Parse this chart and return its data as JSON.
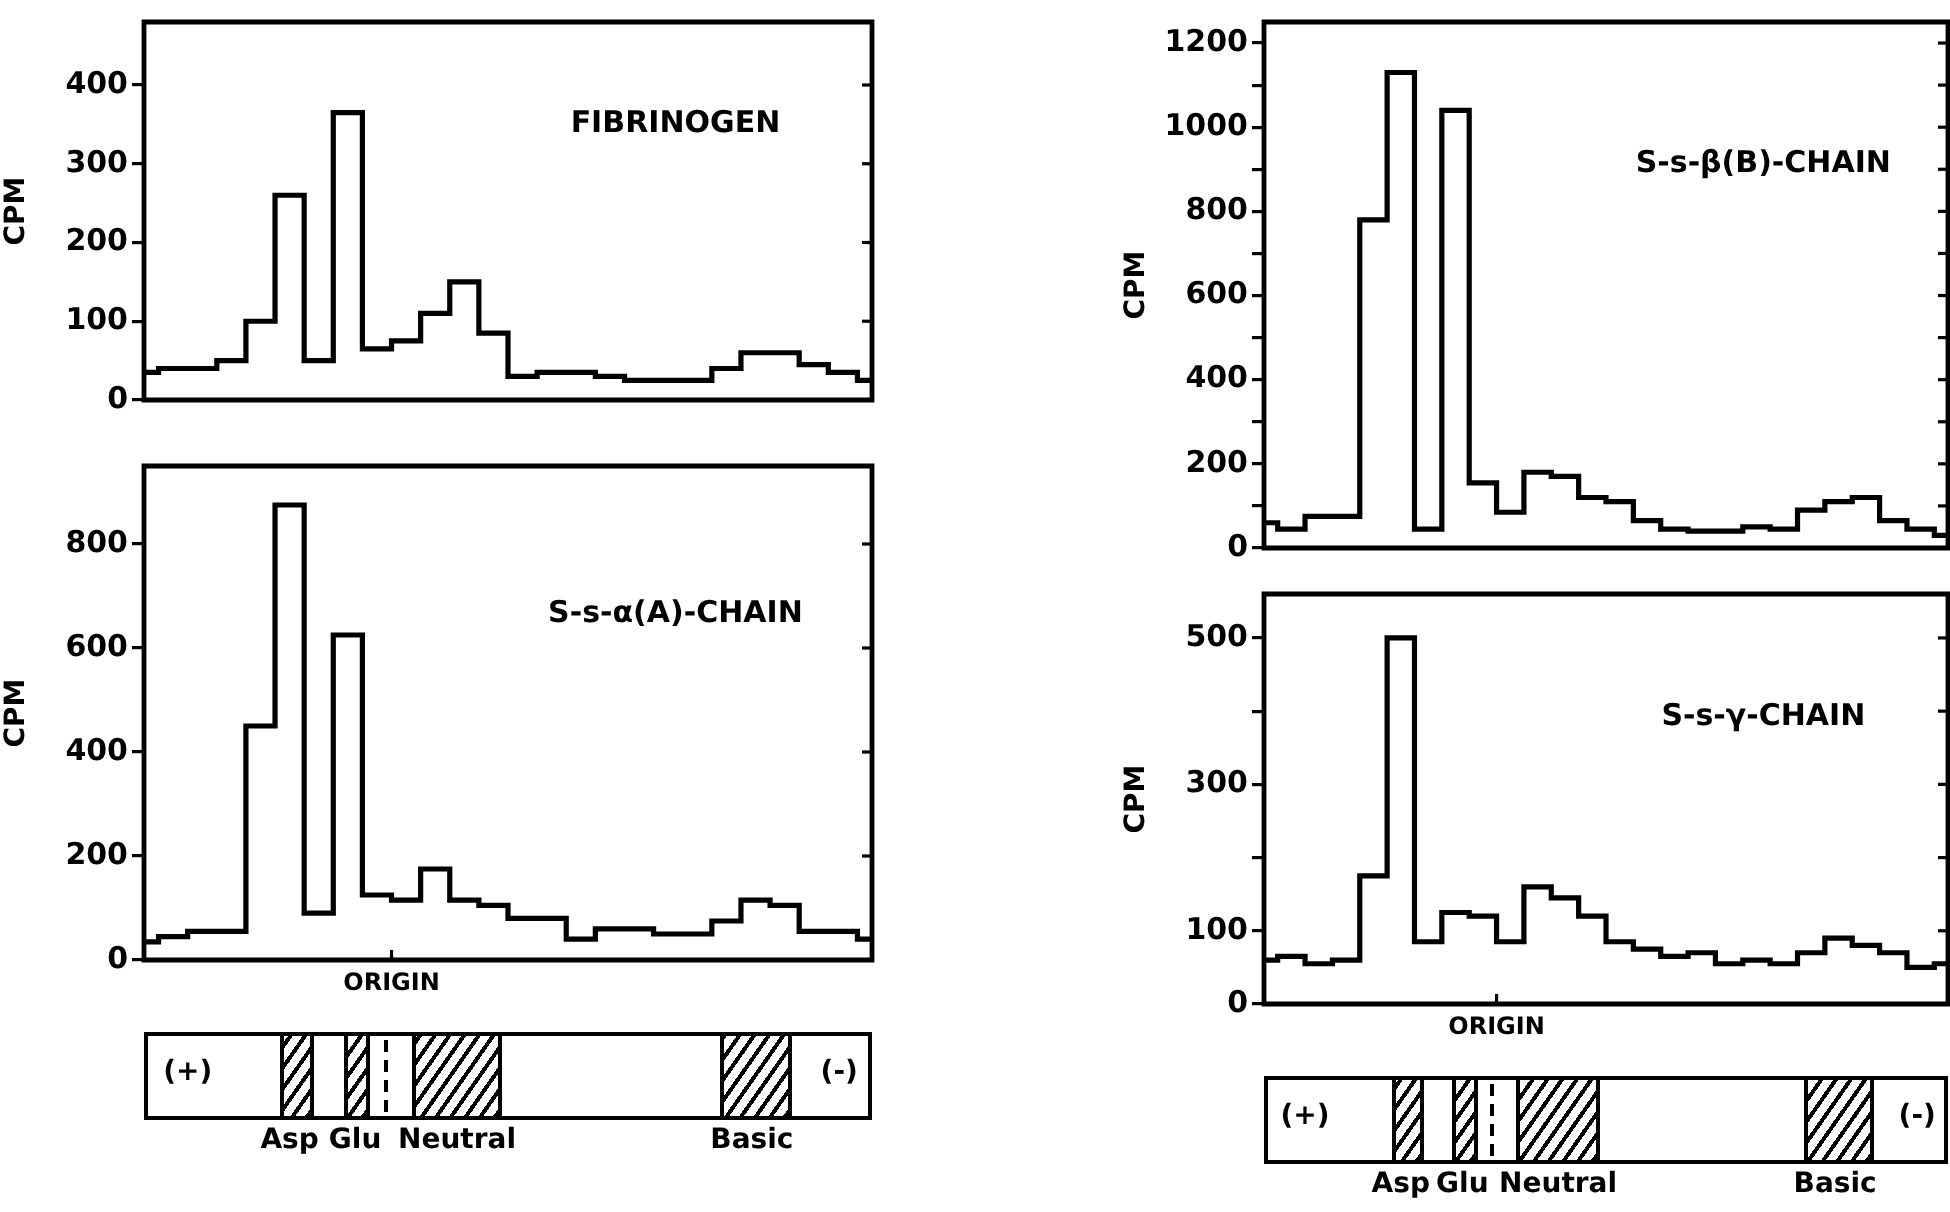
{
  "chart_data": [
    {
      "type": "step",
      "title": "FIBRINOGEN",
      "ylabel": "CPM",
      "categories": [
        null,
        null,
        null,
        null,
        null,
        null,
        null,
        null,
        null,
        null,
        null,
        null,
        null,
        null,
        null,
        null,
        null,
        null,
        null,
        null,
        null,
        null,
        null,
        null,
        null,
        null
      ],
      "series": [
        {
          "color": "#000000",
          "values": [
            35,
            40,
            40,
            50,
            100,
            260,
            50,
            365,
            65,
            75,
            110,
            150,
            85,
            30,
            35,
            35,
            30,
            25,
            25,
            25,
            40,
            60,
            60,
            45,
            35,
            25
          ]
        }
      ],
      "ylim": [
        0,
        480
      ],
      "yticks": [
        0,
        100,
        200,
        300,
        400
      ],
      "tick_labels": "y",
      "grid": false,
      "legend": false
    },
    {
      "type": "step",
      "title": "S-s-α(A)-CHAIN",
      "ylabel": "CPM",
      "categories": [
        null,
        null,
        null,
        null,
        null,
        null,
        null,
        null,
        null,
        null,
        null,
        null,
        null,
        null,
        null,
        null,
        null,
        null,
        null,
        null,
        null,
        null,
        null,
        null,
        null,
        null
      ],
      "series": [
        {
          "color": "#000000",
          "values": [
            35,
            45,
            55,
            55,
            450,
            875,
            90,
            625,
            125,
            115,
            175,
            115,
            105,
            80,
            80,
            40,
            60,
            60,
            50,
            50,
            75,
            115,
            105,
            55,
            55,
            40
          ]
        }
      ],
      "ylim": [
        0,
        950
      ],
      "yticks": [
        0,
        200,
        400,
        600,
        800
      ],
      "tick_labels": "y",
      "grid": false,
      "legend": false,
      "annotations": [
        "ORIGIN",
        "(+)",
        "(-)",
        "Asp",
        "Glu",
        "Neutral",
        "Basic"
      ]
    },
    {
      "type": "step",
      "title": "S-s-β(B)-CHAIN",
      "ylabel": "CPM",
      "categories": [
        null,
        null,
        null,
        null,
        null,
        null,
        null,
        null,
        null,
        null,
        null,
        null,
        null,
        null,
        null,
        null,
        null,
        null,
        null,
        null,
        null,
        null,
        null,
        null,
        null,
        null
      ],
      "series": [
        {
          "color": "#000000",
          "values": [
            60,
            45,
            75,
            75,
            780,
            1130,
            45,
            1040,
            155,
            85,
            180,
            170,
            120,
            110,
            65,
            45,
            40,
            40,
            50,
            45,
            90,
            110,
            120,
            65,
            45,
            30
          ]
        }
      ],
      "ylim": [
        0,
        1250
      ],
      "yticks": [
        0,
        {
          "value": 100,
          "label": null
        },
        200,
        {
          "value": 300,
          "label": null
        },
        400,
        {
          "value": 500,
          "label": null
        },
        600,
        {
          "value": 700,
          "label": null
        },
        800,
        {
          "value": 900,
          "label": null
        },
        1000,
        {
          "value": 1100,
          "label": null
        },
        1200
      ],
      "tick_labels": "y",
      "grid": false,
      "legend": false
    },
    {
      "type": "step",
      "title": "S-s-γ-CHAIN",
      "ylabel": "CPM",
      "categories": [
        null,
        null,
        null,
        null,
        null,
        null,
        null,
        null,
        null,
        null,
        null,
        null,
        null,
        null,
        null,
        null,
        null,
        null,
        null,
        null,
        null,
        null,
        null,
        null,
        null,
        null
      ],
      "series": [
        {
          "color": "#000000",
          "values": [
            60,
            65,
            55,
            60,
            175,
            500,
            85,
            125,
            120,
            85,
            160,
            145,
            120,
            85,
            75,
            65,
            70,
            55,
            60,
            55,
            70,
            90,
            80,
            70,
            50,
            55
          ]
        }
      ],
      "ylim": [
        0,
        560
      ],
      "yticks": [
        0,
        100,
        {
          "value": 200,
          "label": null
        },
        300,
        {
          "value": 400,
          "label": null
        },
        500
      ],
      "tick_labels": "y",
      "grid": false,
      "legend": false,
      "annotations": [
        "ORIGIN",
        "(+)",
        "(-)",
        "Asp",
        "Glu",
        "Neutral",
        "Basic"
      ]
    }
  ]
}
